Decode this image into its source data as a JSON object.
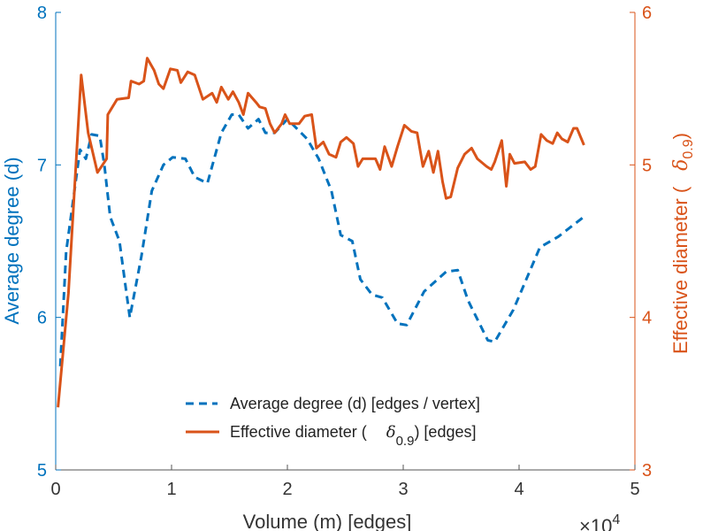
{
  "chart_data": {
    "type": "line",
    "xlabel": "Volume (m) [edges]",
    "x_multiplier": "×10",
    "x_multiplier_exp": "4",
    "ylabel_left": "Average degree (d)",
    "ylabel_right_prefix": "Effective diameter (",
    "ylabel_right_symbol": "δ",
    "ylabel_right_sub": "0.9",
    "ylabel_right_suffix": ")",
    "xlim": [
      0,
      5
    ],
    "ylim_left": [
      5,
      8
    ],
    "ylim_right": [
      3,
      6
    ],
    "x_ticks": [
      "0",
      "1",
      "2",
      "3",
      "4",
      "5"
    ],
    "y_ticks_left": [
      "5",
      "6",
      "7",
      "8"
    ],
    "y_ticks_right": [
      "3",
      "4",
      "5",
      "6"
    ],
    "colors": {
      "left": "#0072BD",
      "right": "#D95319",
      "axis": "#555555"
    },
    "legend": {
      "placement": "bottom-center",
      "entries": [
        {
          "label": "Average degree (d) [edges / vertex]",
          "style": "dashed",
          "color": "#0072BD"
        },
        {
          "label_prefix": "Effective diameter (",
          "symbol": "δ",
          "sub": "0.9",
          "label_suffix": ") [edges]",
          "style": "solid",
          "color": "#D95319"
        }
      ]
    },
    "series": [
      {
        "name": "Average degree (d) [edges / vertex]",
        "axis": "left",
        "x": [
          0.04,
          0.09,
          0.21,
          0.26,
          0.31,
          0.38,
          0.42,
          0.47,
          0.55,
          0.6,
          0.64,
          0.74,
          0.83,
          0.93,
          1.01,
          1.12,
          1.2,
          1.31,
          1.43,
          1.52,
          1.58,
          1.66,
          1.75,
          1.81,
          1.89,
          2.0,
          2.17,
          2.27,
          2.38,
          2.46,
          2.56,
          2.63,
          2.73,
          2.82,
          2.95,
          3.03,
          3.18,
          3.37,
          3.47,
          3.56,
          3.73,
          3.79,
          3.95,
          4.18,
          4.34,
          4.56
        ],
        "y": [
          5.68,
          6.43,
          7.1,
          7.04,
          7.2,
          7.19,
          7.0,
          6.66,
          6.5,
          6.22,
          6.0,
          6.4,
          6.83,
          7.0,
          7.05,
          7.04,
          6.92,
          6.88,
          7.21,
          7.33,
          7.33,
          7.24,
          7.3,
          7.21,
          7.21,
          7.3,
          7.17,
          7.04,
          6.83,
          6.54,
          6.5,
          6.25,
          6.15,
          6.13,
          5.96,
          5.95,
          6.17,
          6.3,
          6.31,
          6.11,
          5.85,
          5.84,
          6.05,
          6.46,
          6.53,
          6.66
        ]
      },
      {
        "name": "Effective diameter (δ0.9) [edges]",
        "axis": "right",
        "x": [
          0.02,
          0.11,
          0.22,
          0.28,
          0.36,
          0.44,
          0.45,
          0.53,
          0.63,
          0.65,
          0.72,
          0.76,
          0.79,
          0.85,
          0.89,
          0.93,
          0.99,
          1.05,
          1.08,
          1.14,
          1.2,
          1.27,
          1.35,
          1.39,
          1.43,
          1.49,
          1.53,
          1.58,
          1.62,
          1.66,
          1.73,
          1.76,
          1.81,
          1.85,
          1.89,
          1.95,
          1.98,
          2.02,
          2.1,
          2.15,
          2.21,
          2.25,
          2.31,
          2.36,
          2.42,
          2.46,
          2.51,
          2.57,
          2.61,
          2.65,
          2.76,
          2.8,
          2.84,
          2.9,
          2.95,
          3.01,
          3.07,
          3.12,
          3.17,
          3.22,
          3.26,
          3.3,
          3.34,
          3.37,
          3.41,
          3.47,
          3.53,
          3.59,
          3.64,
          3.72,
          3.76,
          3.79,
          3.85,
          3.89,
          3.92,
          3.96,
          4.05,
          4.1,
          4.14,
          4.19,
          4.24,
          4.29,
          4.33,
          4.37,
          4.42,
          4.47,
          4.5,
          4.56
        ],
        "y": [
          3.41,
          4.16,
          5.59,
          5.21,
          4.95,
          5.04,
          5.33,
          5.43,
          5.44,
          5.55,
          5.53,
          5.55,
          5.7,
          5.62,
          5.53,
          5.5,
          5.63,
          5.62,
          5.54,
          5.61,
          5.59,
          5.43,
          5.47,
          5.41,
          5.51,
          5.43,
          5.48,
          5.41,
          5.33,
          5.47,
          5.41,
          5.38,
          5.37,
          5.27,
          5.21,
          5.27,
          5.33,
          5.27,
          5.27,
          5.32,
          5.33,
          5.11,
          5.15,
          5.07,
          5.05,
          5.15,
          5.18,
          5.14,
          4.99,
          5.04,
          5.04,
          4.97,
          5.12,
          4.99,
          5.12,
          5.26,
          5.22,
          5.21,
          4.99,
          5.09,
          4.95,
          5.09,
          4.89,
          4.78,
          4.79,
          4.98,
          5.07,
          5.11,
          5.04,
          4.99,
          4.97,
          5.02,
          5.16,
          4.86,
          5.07,
          5.01,
          5.02,
          4.97,
          4.99,
          5.2,
          5.16,
          5.14,
          5.21,
          5.17,
          5.15,
          5.24,
          5.24,
          5.13
        ]
      }
    ]
  }
}
